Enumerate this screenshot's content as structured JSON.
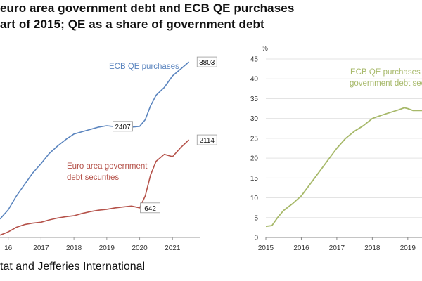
{
  "title_line1": "euro area government debt and ECB QE purchases",
  "title_line2": "art of 2015; QE as a share of government debt",
  "source": "tat and Jefferies International",
  "colors": {
    "blue": "#5b85bf",
    "red": "#b5524a",
    "green": "#a7b96a"
  },
  "chart_data": [
    {
      "type": "line",
      "x_tick_labels": [
        "16",
        "2017",
        "2018",
        "2019",
        "2020",
        "2021"
      ],
      "xlim": [
        2015.75,
        2021.85
      ],
      "ylim": [
        0,
        4200
      ],
      "series": [
        {
          "name": "ECB QE purchases",
          "color": "#5b85bf",
          "x": [
            2015.75,
            2016.0,
            2016.25,
            2016.5,
            2016.75,
            2017.0,
            2017.25,
            2017.5,
            2017.75,
            2018.0,
            2018.25,
            2018.5,
            2018.75,
            2019.0,
            2019.25,
            2019.5,
            2019.75,
            2020.0,
            2020.17,
            2020.33,
            2020.5,
            2020.75,
            2021.0,
            2021.25,
            2021.5
          ],
          "y": [
            400,
            600,
            900,
            1150,
            1400,
            1600,
            1820,
            1980,
            2120,
            2240,
            2290,
            2340,
            2390,
            2420,
            2400,
            2400,
            2390,
            2407,
            2550,
            2850,
            3080,
            3250,
            3500,
            3650,
            3803
          ]
        },
        {
          "name": "Euro area government debt securities",
          "color": "#b5524a",
          "x": [
            2015.75,
            2016.0,
            2016.25,
            2016.5,
            2016.75,
            2017.0,
            2017.25,
            2017.5,
            2017.75,
            2018.0,
            2018.25,
            2018.5,
            2018.75,
            2019.0,
            2019.25,
            2019.5,
            2019.75,
            2020.0,
            2020.17,
            2020.33,
            2020.5,
            2020.75,
            2021.0,
            2021.25,
            2021.5
          ],
          "y": [
            50,
            120,
            220,
            280,
            310,
            330,
            380,
            420,
            450,
            470,
            520,
            560,
            590,
            610,
            640,
            660,
            680,
            642,
            900,
            1350,
            1650,
            1800,
            1750,
            1950,
            2114
          ]
        }
      ],
      "annotations": [
        {
          "text": "ECB QE purchases",
          "color": "#5b85bf"
        },
        {
          "text": "Euro area government",
          "color": "#b5524a"
        },
        {
          "text": "debt securities",
          "color": "#b5524a"
        }
      ],
      "end_labels": [
        "3803",
        "2407",
        "2114",
        "642"
      ]
    },
    {
      "type": "line",
      "y_unit": "%",
      "ylim": [
        0,
        45
      ],
      "y_ticks": [
        0,
        5,
        10,
        15,
        20,
        25,
        30,
        35,
        40,
        45
      ],
      "x_tick_labels": [
        "2015",
        "2016",
        "2017",
        "2018",
        "2019"
      ],
      "xlim": [
        2015,
        2019.4
      ],
      "series": [
        {
          "name": "ECB QE purchases as a share of government debt securities",
          "color": "#a7b96a",
          "x": [
            2015.0,
            2015.17,
            2015.33,
            2015.5,
            2015.75,
            2016.0,
            2016.25,
            2016.5,
            2016.75,
            2017.0,
            2017.25,
            2017.5,
            2017.75,
            2018.0,
            2018.25,
            2018.5,
            2018.75,
            2018.9,
            2019.0,
            2019.15,
            2019.4
          ],
          "y": [
            2.8,
            3.0,
            5.0,
            6.8,
            8.5,
            10.5,
            13.5,
            16.5,
            19.5,
            22.5,
            25.0,
            26.8,
            28.2,
            30.0,
            30.8,
            31.5,
            32.2,
            32.7,
            32.5,
            32.0,
            32.0
          ]
        }
      ],
      "annotations": [
        {
          "text": "ECB QE purchases as",
          "color": "#a7b96a"
        },
        {
          "text": "government debt secu",
          "color": "#a7b96a"
        }
      ]
    }
  ]
}
